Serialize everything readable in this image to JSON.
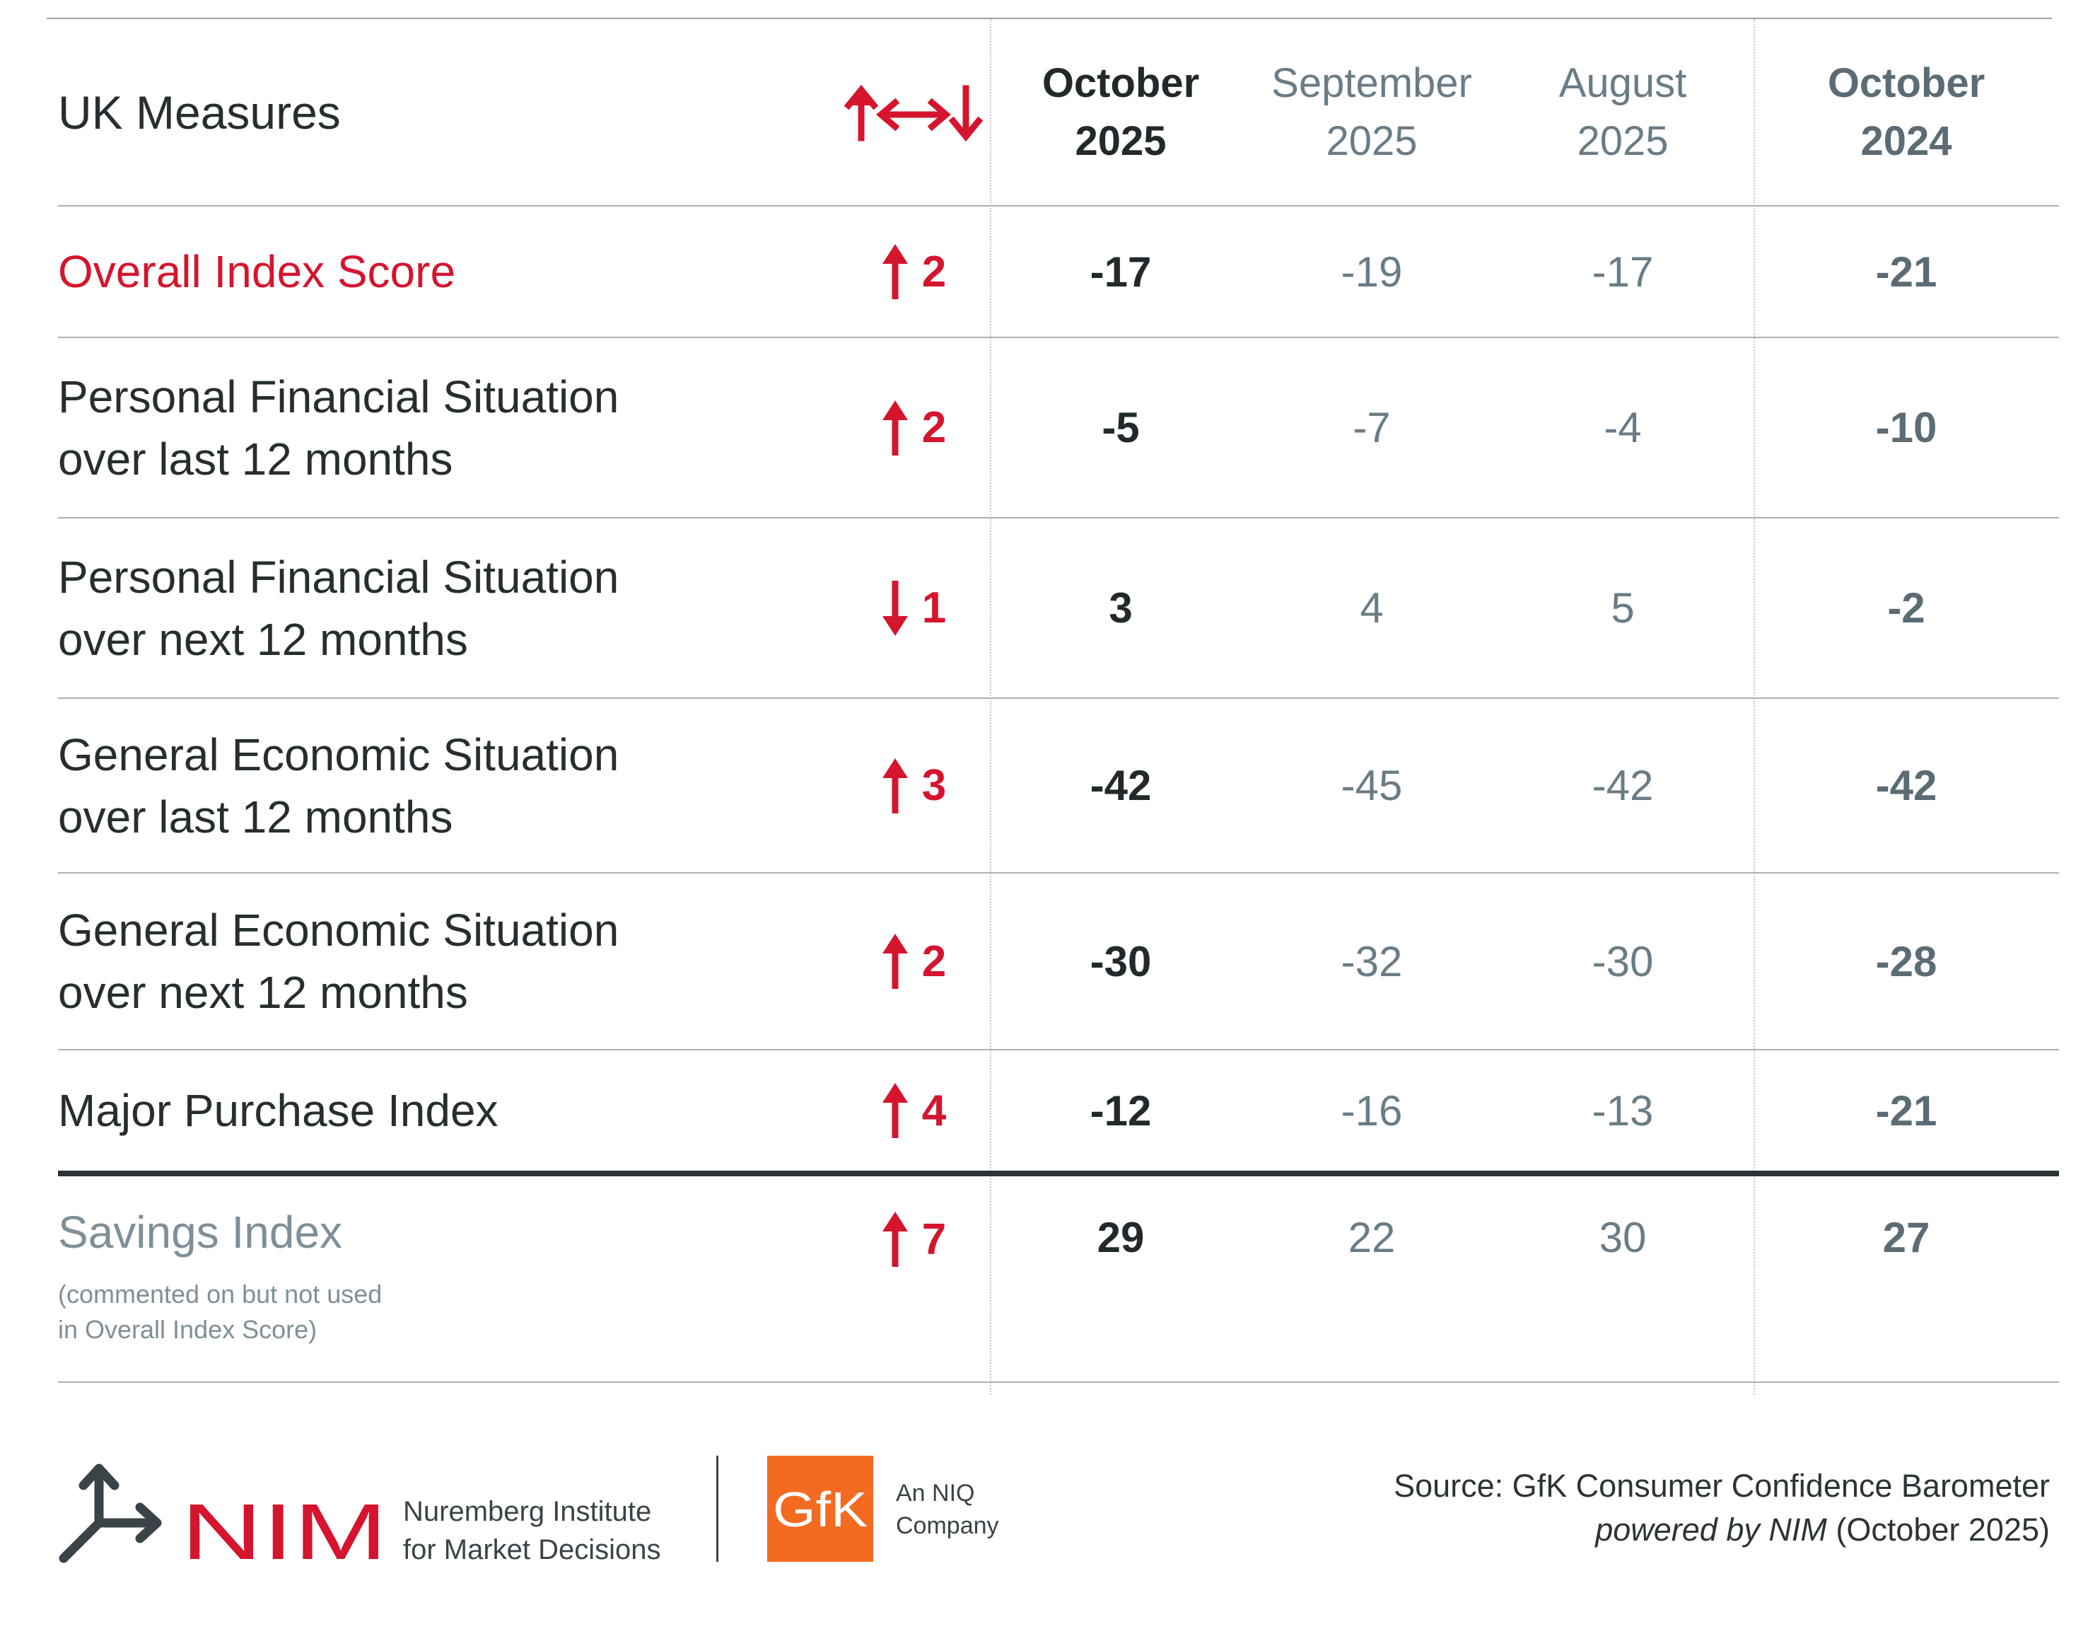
{
  "header": {
    "title": "UK Measures",
    "columns": [
      {
        "line1": "October",
        "line2": "2025"
      },
      {
        "line1": "September",
        "line2": "2025"
      },
      {
        "line1": "August",
        "line2": "2025"
      },
      {
        "line1": "October",
        "line2": "2024"
      }
    ]
  },
  "rows": [
    {
      "line1": "Overall Index Score",
      "line2": "",
      "direction": "up",
      "change": "2",
      "values": [
        "-17",
        "-19",
        "-17",
        "-21"
      ]
    },
    {
      "line1": "Personal Financial Situation",
      "line2": "over last 12 months",
      "direction": "up",
      "change": "2",
      "values": [
        "-5",
        "-7",
        "-4",
        "-10"
      ]
    },
    {
      "line1": "Personal Financial Situation",
      "line2": "over next 12 months",
      "direction": "down",
      "change": "1",
      "values": [
        "3",
        "4",
        "5",
        "-2"
      ]
    },
    {
      "line1": "General Economic Situation",
      "line2": "over last 12 months",
      "direction": "up",
      "change": "3",
      "values": [
        "-42",
        "-45",
        "-42",
        "-42"
      ]
    },
    {
      "line1": "General Economic Situation",
      "line2": "over next 12 months",
      "direction": "up",
      "change": "2",
      "values": [
        "-30",
        "-32",
        "-30",
        "-28"
      ]
    },
    {
      "line1": "Major Purchase Index",
      "line2": "",
      "direction": "up",
      "change": "4",
      "values": [
        "-12",
        "-16",
        "-13",
        "-21"
      ]
    },
    {
      "line1": "Savings Index",
      "line2": "",
      "note1": "(commented on but not used",
      "note2": "in Overall Index Score)",
      "direction": "up",
      "change": "7",
      "values": [
        "29",
        "22",
        "30",
        "27"
      ]
    }
  ],
  "footer": {
    "nim_logo": "NIM",
    "nim_name1": "Nuremberg Institute",
    "nim_name2": "for Market Decisions",
    "gfk_logo": "GfK",
    "niq1": "An NIQ",
    "niq2": "Company",
    "source1": "Source: GfK Consumer Confidence Barometer",
    "source2_italic": "powered by NIM",
    "source2_rest": " (October 2025)"
  },
  "colors": {
    "accent_red": "#d5142e",
    "dark_text": "#22292c",
    "grey_text": "#6a7c86",
    "gfk_orange": "#f26b21"
  }
}
